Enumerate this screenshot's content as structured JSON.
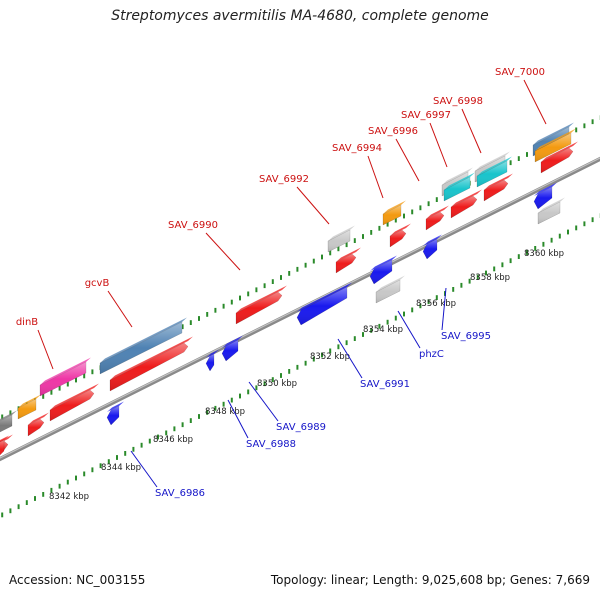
{
  "title": "Streptomyces avermitilis MA-4680, complete genome",
  "footer": {
    "accession": "Accession: NC_003155",
    "topology": "Topology: linear; Length: 9,025,608 bp; Genes: 7,669"
  },
  "colors": {
    "forward_label": "#cc1111",
    "reverse_label": "#1515c8",
    "forward_gene": "#ee1c1c",
    "reverse_gene": "#1a1aee",
    "grey_gene": "#c8c8c8",
    "dark_grey_gene": "#7a7a7a",
    "orange_gene": "#f39a10",
    "steelblue_gene": "#4f82b3",
    "cyan_gene": "#19c4cc",
    "pink_gene": "#ef36a6",
    "tick_dots": "#2a8a2a",
    "backbone": "#8a8a8a"
  },
  "scale_ticks": [
    "8342 kbp",
    "8344 kbp",
    "8346 kbp",
    "8348 kbp",
    "8350 kbp",
    "8352 kbp",
    "8354 kbp",
    "8356 kbp",
    "8358 kbp",
    "8360 kbp"
  ],
  "forward_gene_labels": [
    "dinB",
    "gcvB",
    "SAV_6990",
    "SAV_6992",
    "SAV_6994",
    "SAV_6996",
    "SAV_6997",
    "SAV_6998",
    "SAV_7000"
  ],
  "reverse_gene_labels": [
    "SAV_6986",
    "SAV_6988",
    "SAV_6989",
    "SAV_6991",
    "phzC",
    "SAV_6995"
  ]
}
